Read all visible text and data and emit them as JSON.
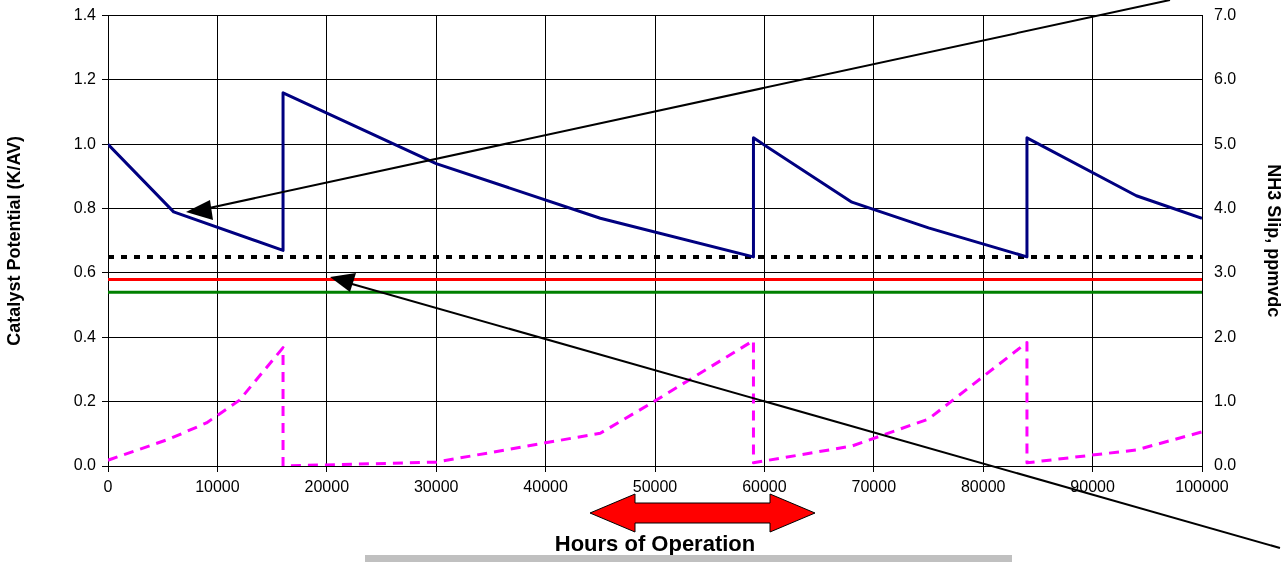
{
  "chart_data": {
    "type": "line",
    "xlabel": "Hours of Operation",
    "ylabel": "Catalyst Potential (K/AV)",
    "y2label": "NH3 Slip, ppmvdc",
    "xlim": [
      0,
      100000
    ],
    "xticks": [
      0,
      10000,
      20000,
      30000,
      40000,
      50000,
      60000,
      70000,
      80000,
      90000,
      100000
    ],
    "ylim": [
      0,
      1.4
    ],
    "yticks": [
      {
        "value": 0,
        "label": "0.0"
      },
      {
        "value": 0.2,
        "label": "0.2"
      },
      {
        "value": 0.4,
        "label": "0.4"
      },
      {
        "value": 0.6,
        "label": "0.6"
      },
      {
        "value": 0.8,
        "label": "0.8"
      },
      {
        "value": 1,
        "label": "1.0"
      },
      {
        "value": 1.2,
        "label": "1.2"
      },
      {
        "value": 1.4,
        "label": "1.4"
      }
    ],
    "y2lim": [
      0,
      7
    ],
    "y2ticks": [
      {
        "value": 0,
        "label": "0.0"
      },
      {
        "value": 1,
        "label": "1.0"
      },
      {
        "value": 2,
        "label": "2.0"
      },
      {
        "value": 3,
        "label": "3.0"
      },
      {
        "value": 4,
        "label": "4.0"
      },
      {
        "value": 5,
        "label": "5.0"
      },
      {
        "value": 6,
        "label": "6.0"
      },
      {
        "value": 7,
        "label": "7.0"
      }
    ],
    "grid": true,
    "legend": false,
    "marker": "none",
    "series": [
      {
        "color": "#000080",
        "line_style": "solid",
        "x": [
          0,
          6000,
          16000,
          16000,
          30000,
          45000,
          59000,
          59000,
          68000,
          75000,
          84000,
          84000,
          94000,
          100000
        ],
        "values": [
          1.0,
          0.79,
          0.67,
          1.16,
          0.94,
          0.77,
          0.65,
          1.02,
          0.82,
          0.74,
          0.65,
          1.02,
          0.84,
          0.77
        ]
      },
      {
        "color": "#ff00ff",
        "line_style": "dashed",
        "axis": "y2",
        "x": [
          0,
          5600,
          9000,
          12000,
          16000,
          16000,
          30000,
          45000,
          49500,
          59000,
          59000,
          68000,
          75000,
          84000,
          84000,
          94000,
          100000
        ],
        "values": [
          0.09,
          0.42,
          0.67,
          1.02,
          1.84,
          0,
          0.06,
          0.51,
          0.96,
          1.95,
          0.05,
          0.31,
          0.73,
          1.92,
          0.05,
          0.25,
          0.53
        ]
      }
    ],
    "ref_lines": [
      {
        "axis": "y",
        "value": 0.65,
        "color": "#000000",
        "line_style": "dotted"
      },
      {
        "axis": "y",
        "value": 0.58,
        "color": "#ff0000",
        "line_style": "solid"
      },
      {
        "axis": "y",
        "value": 0.54,
        "color": "#008000",
        "line_style": "solid"
      }
    ]
  }
}
